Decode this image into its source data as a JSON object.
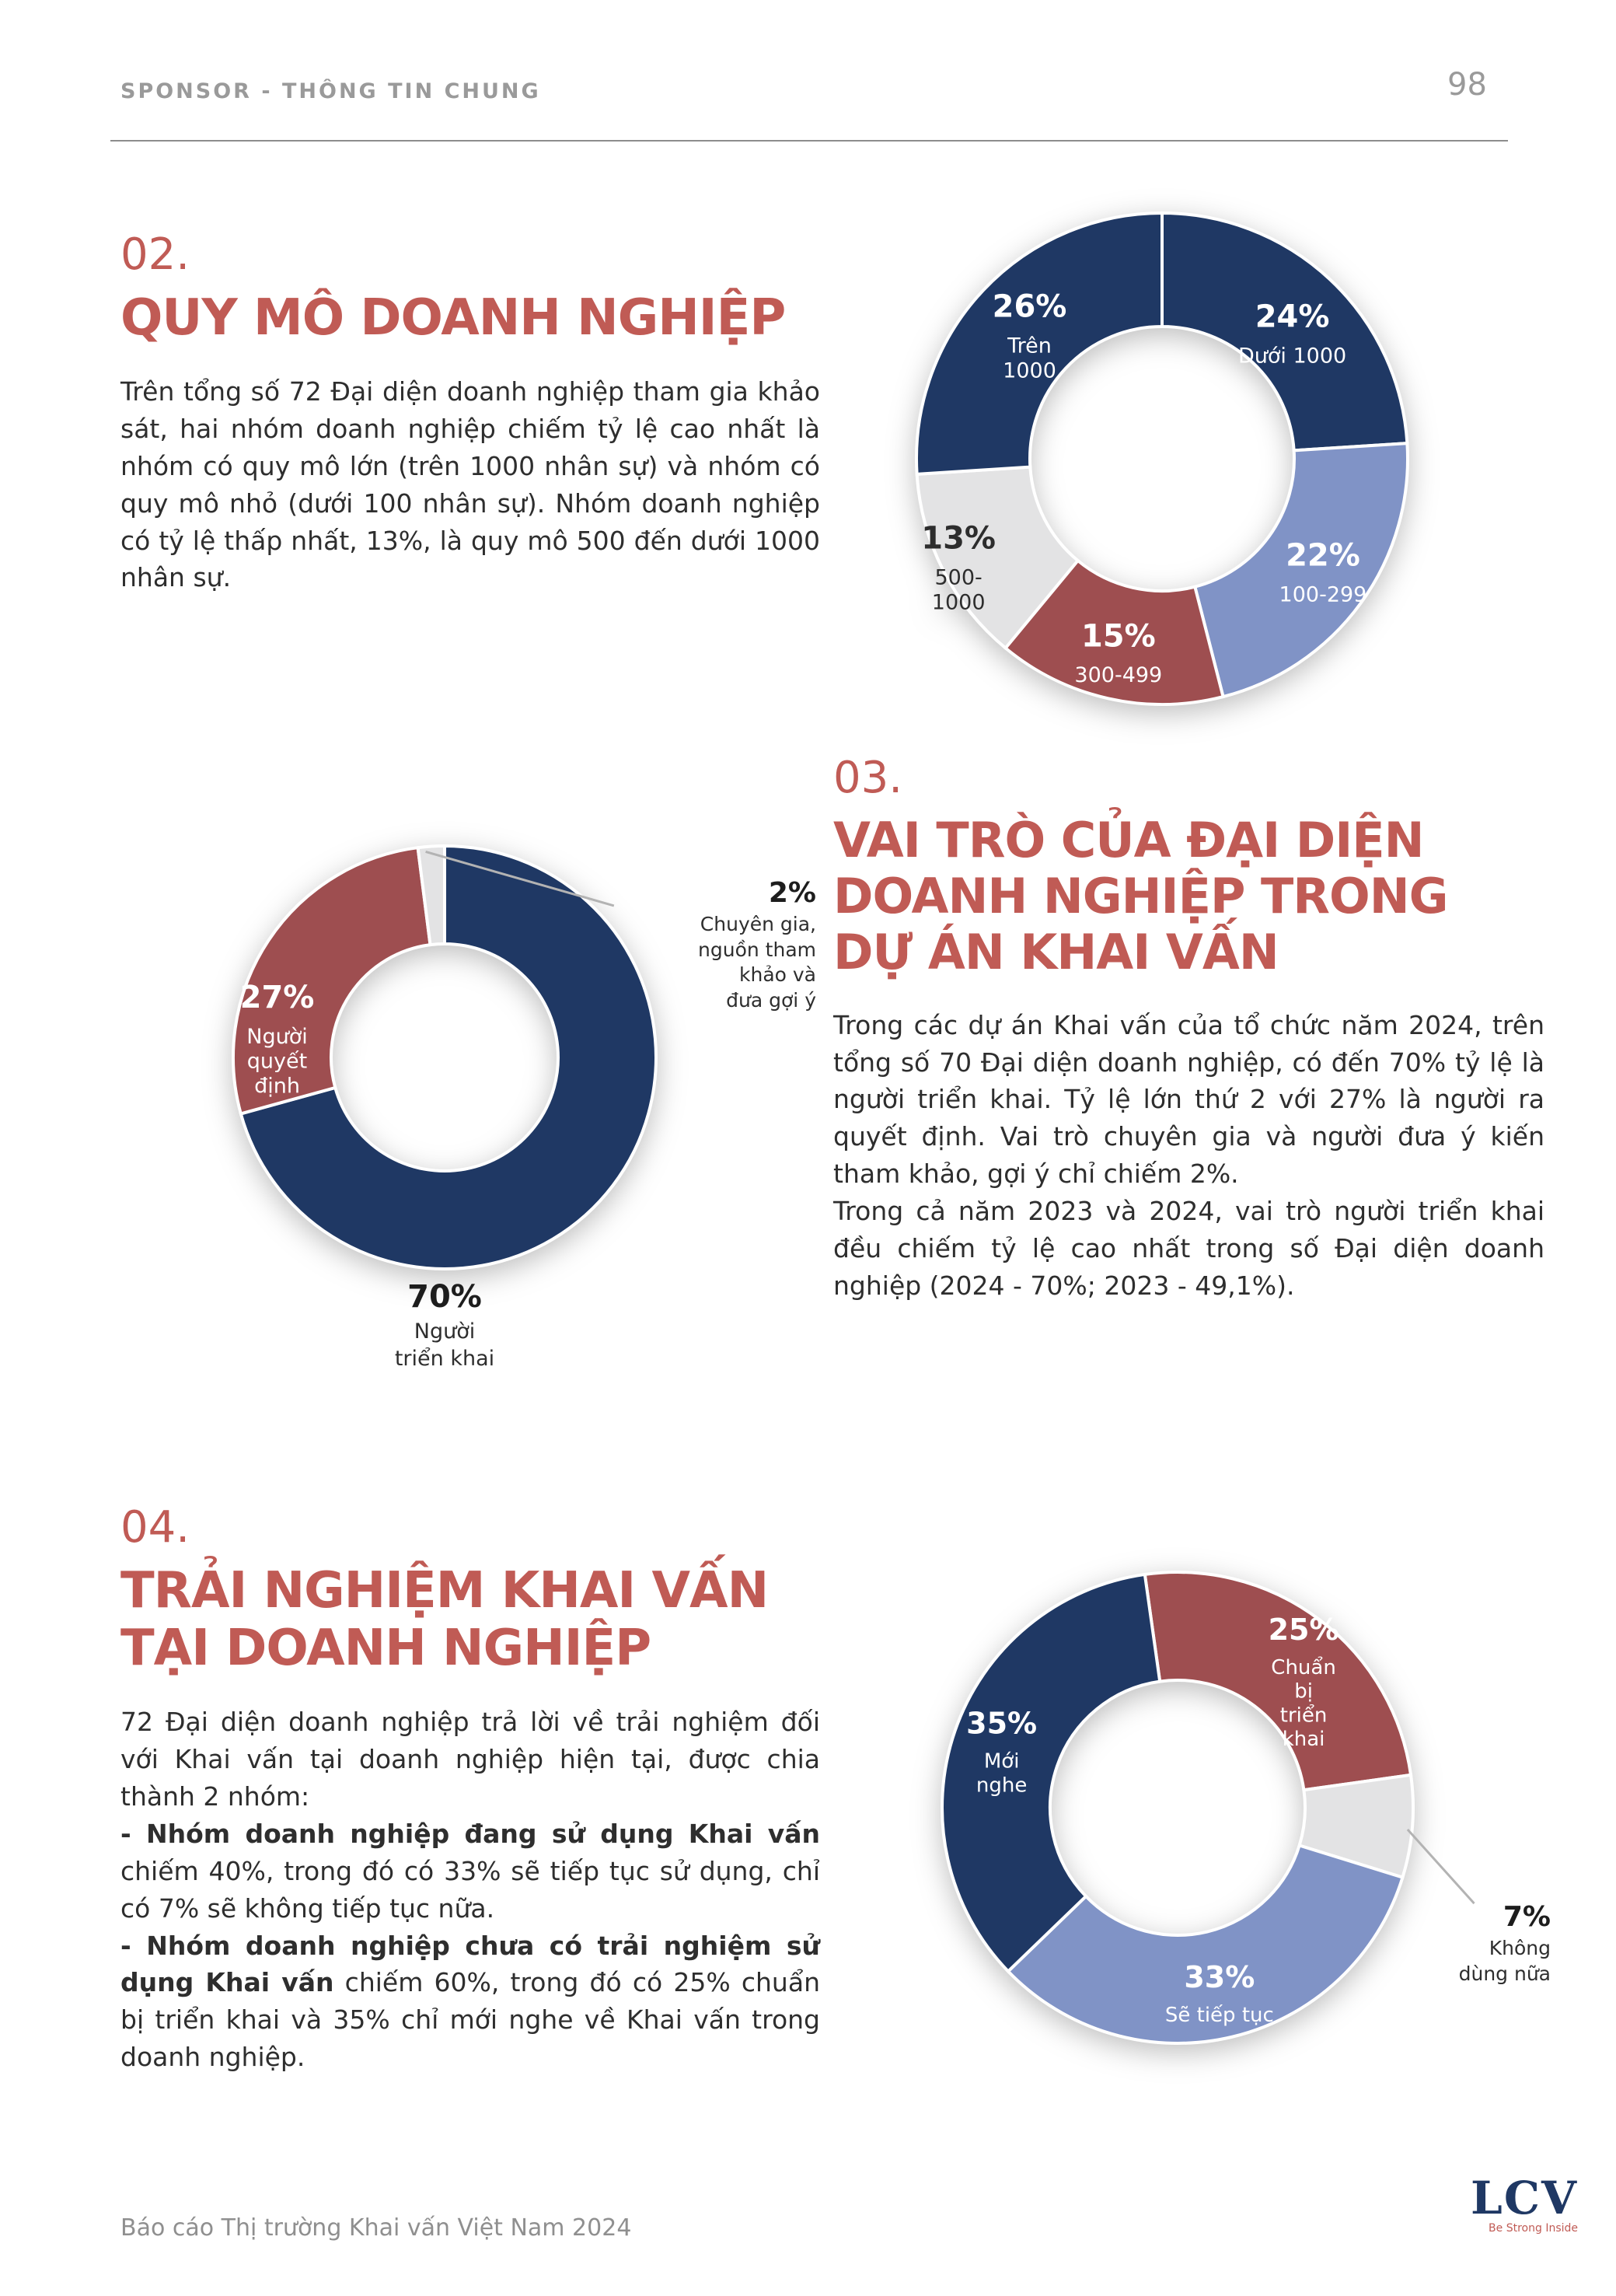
{
  "page": {
    "header": {
      "eyebrow": "SPONSOR - THÔNG TIN CHUNG",
      "page_number": "98"
    },
    "footer": {
      "report_title": "Báo cáo Thị trường Khai vấn Việt Nam 2024",
      "logo": "LCV",
      "logo_tagline": "Be Strong Inside"
    }
  },
  "colors": {
    "accent_red": "#c05b55",
    "navy": "#1f3864",
    "periwinkle": "#8093c6",
    "maroon": "#9e4e50",
    "gray_slice": "#e3e3e4",
    "body_text": "#2e2e2e"
  },
  "sections": {
    "s02": {
      "number": "02.",
      "title": "QUY MÔ DOANH NGHIỆP",
      "body": "Trên tổng số 72 Đại diện doanh nghiệp tham gia khảo sát, hai nhóm doanh nghiệp chiếm tỷ lệ cao nhất là nhóm có quy mô lớn (trên 1000 nhân sự) và nhóm có quy mô nhỏ (dưới 100 nhân sự). Nhóm doanh nghiệp có tỷ lệ thấp nhất, 13%, là quy mô 500 đến dưới 1000 nhân sự."
    },
    "s03": {
      "number": "03.",
      "title": "VAI TRÒ CỦA ĐẠI DIỆN\nDOANH NGHIỆP TRONG\nDỰ ÁN KHAI VẤN",
      "body1": "Trong các dự án Khai vấn của tổ chức năm 2024, trên tổng số 70 Đại diện doanh nghiệp, có đến 70% tỷ lệ là người triển khai. Tỷ lệ lớn thứ 2 với 27% là người ra quyết định. Vai trò chuyên gia và người đưa ý kiến tham khảo, gợi ý chỉ chiếm 2%.",
      "body2": "Trong cả năm 2023 và 2024, vai trò người triển khai đều chiếm tỷ lệ cao nhất trong số Đại diện doanh nghiệp (2024 - 70%; 2023 - 49,1%)."
    },
    "s04": {
      "number": "04.",
      "title": "TRẢI NGHIỆM KHAI VẤN\nTẠI DOANH NGHIỆP",
      "intro": "72 Đại diện doanh nghiệp trả lời về trải nghiệm đối với Khai vấn tại doanh nghiệp hiện tại, được chia thành 2 nhóm:",
      "point1_bold": "- Nhóm doanh nghiệp đang sử dụng Khai vấn",
      "point1_rest": " chiếm 40%, trong đó có 33% sẽ tiếp tục sử dụng, chỉ có 7% sẽ không tiếp tục nữa.",
      "point2_bold": "- Nhóm doanh nghiệp chưa có trải nghiệm sử dụng Khai vấn",
      "point2_rest": " chiếm 60%, trong đó có 25% chuẩn bị triển khai và 35% chỉ mới nghe về Khai vấn trong doanh nghiệp."
    }
  },
  "chart_data": [
    {
      "id": "company-size",
      "type": "pie",
      "style": "donut",
      "rotate": 0,
      "slices": [
        {
          "label": "Dưới 1000",
          "pct": 24,
          "pct_label": "24%",
          "color": "#1f3864",
          "text_color": "#ffffff",
          "label_angle": 45,
          "label_r": 0.75
        },
        {
          "label": "100-299",
          "pct": 22,
          "pct_label": "22%",
          "color": "#8093c6",
          "text_color": "#ffffff",
          "label_angle": 124,
          "label_r": 0.79
        },
        {
          "label": "300-499",
          "pct": 15,
          "pct_label": "15%",
          "color": "#9e4e50",
          "text_color": "#ffffff",
          "label_angle": 193,
          "label_r": 0.79
        },
        {
          "label": "500-\n1000",
          "pct": 13,
          "pct_label": "13%",
          "color": "#e3e3e4",
          "text_color": "#2d2d2d",
          "label_angle": 243,
          "label_r": 0.93
        },
        {
          "label": "Trên\n1000",
          "pct": 26,
          "pct_label": "26%",
          "color": "#1f3864",
          "text_color": "#ffffff",
          "label_angle": 314,
          "label_r": 0.75
        }
      ]
    },
    {
      "id": "representative-role",
      "type": "pie",
      "style": "donut",
      "rotate": 0,
      "slices": [
        {
          "label": "Người triển khai",
          "pct": 70,
          "pct_label": "70%",
          "color": "#1f3864",
          "text_color": "#ffffff",
          "label_inside": false
        },
        {
          "label": "Người\nquyết\nđịnh",
          "pct": 27,
          "pct_label": "27%",
          "color": "#9e4e50",
          "text_color": "#ffffff",
          "label_angle": 278,
          "label_r": 0.8
        },
        {
          "label": "Chuyên gia, nguồn tham khảo và đưa gợi ý",
          "pct": 2,
          "pct_label": "2%",
          "color": "#e3e3e4",
          "text_color": "#2d2d2d",
          "label_inside": false
        }
      ],
      "external_labels": [
        {
          "pct_label": "70%",
          "lines": "Người\ntriển khai"
        },
        {
          "pct_label": "2%",
          "lines": "Chuyên gia,\nnguồn tham\nkhảo và\nđưa gợi ý"
        }
      ]
    },
    {
      "id": "coaching-experience",
      "type": "pie",
      "style": "donut",
      "rotate": -8,
      "slices": [
        {
          "label": "Chuẩn\nbị\ntriển\nkhai",
          "pct": 25,
          "pct_label": "25%",
          "color": "#9e4e50",
          "text_color": "#ffffff",
          "label_angle": 44,
          "label_r": 0.77
        },
        {
          "label": "Không dùng nữa",
          "pct": 7,
          "pct_label": "7%",
          "color": "#e3e3e4",
          "text_color": "#2d2d2d",
          "label_inside": false
        },
        {
          "label": "Sẽ tiếp tục",
          "pct": 33,
          "pct_label": "33%",
          "color": "#8093c6",
          "text_color": "#ffffff",
          "label_angle": 167,
          "label_r": 0.79
        },
        {
          "label": "Mới\nnghe",
          "pct": 35,
          "pct_label": "35%",
          "color": "#1f3864",
          "text_color": "#ffffff",
          "label_angle": 289,
          "label_r": 0.79
        }
      ],
      "external_labels": [
        {
          "pct_label": "7%",
          "lines": "Không\ndùng nữa"
        }
      ]
    }
  ]
}
